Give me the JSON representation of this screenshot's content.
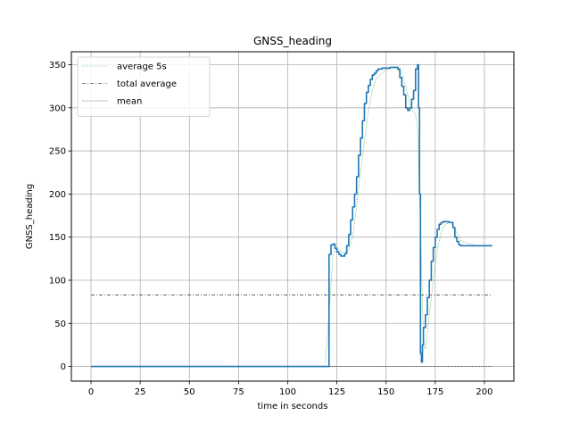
{
  "chart_data": {
    "type": "line",
    "title": "GNSS_heading",
    "xlabel": "time in seconds",
    "ylabel": "GNSS_heading",
    "xlim": [
      -10,
      215
    ],
    "ylim": [
      -17,
      365
    ],
    "xticks": [
      0,
      25,
      50,
      75,
      100,
      125,
      150,
      175,
      200
    ],
    "yticks": [
      0,
      50,
      100,
      150,
      200,
      250,
      300,
      350
    ],
    "grid": true,
    "legend_position": "top-left",
    "series": [
      {
        "name": "",
        "color": "#1f77b4",
        "style": "solid-step",
        "x": [
          0,
          10,
          20,
          30,
          40,
          50,
          60,
          70,
          80,
          90,
          100,
          110,
          120,
          121,
          122,
          123,
          124,
          125,
          126,
          127,
          128,
          129,
          130,
          131,
          132,
          133,
          134,
          135,
          136,
          137,
          138,
          139,
          140,
          141,
          142,
          143,
          144,
          145,
          146,
          148,
          150,
          152,
          154,
          156,
          157,
          158,
          159,
          160,
          161,
          162,
          163,
          164,
          165,
          166,
          166.5,
          167,
          167.5,
          168,
          168.5,
          169,
          170,
          171,
          172,
          173,
          174,
          175,
          176,
          177,
          178,
          179,
          180,
          182,
          184,
          185,
          186,
          187,
          188,
          190,
          195,
          200,
          204
        ],
        "y": [
          0,
          0,
          0,
          0,
          0,
          0,
          0,
          0,
          0,
          0,
          0,
          0,
          0,
          130,
          141,
          142,
          137,
          133,
          130,
          128,
          128,
          131,
          140,
          153,
          170,
          185,
          200,
          220,
          245,
          265,
          285,
          305,
          318,
          326,
          333,
          338,
          340,
          343,
          345,
          346,
          346,
          347,
          347,
          345,
          335,
          325,
          315,
          300,
          297,
          300,
          310,
          320,
          345,
          350,
          300,
          200,
          15,
          5,
          25,
          45,
          60,
          80,
          100,
          122,
          138,
          150,
          159,
          165,
          167,
          168,
          168,
          167,
          161,
          150,
          145,
          141,
          140,
          140,
          140,
          140,
          140
        ]
      },
      {
        "name": "average 5s",
        "color": "#2ca02c",
        "style": "dotted",
        "x": [
          0,
          20,
          40,
          60,
          80,
          100,
          119,
          121,
          123,
          125,
          127,
          129,
          131,
          133,
          135,
          137,
          139,
          141,
          143,
          145,
          150,
          155,
          158,
          160,
          162,
          164,
          165,
          166,
          167,
          168,
          169,
          170,
          172,
          174,
          176,
          178,
          180,
          182,
          184,
          186,
          188,
          195,
          204
        ],
        "y": [
          0,
          0,
          0,
          0,
          0,
          0,
          0,
          60,
          130,
          138,
          134,
          130,
          135,
          150,
          185,
          225,
          262,
          296,
          320,
          334,
          344,
          346,
          340,
          325,
          305,
          295,
          292,
          275,
          200,
          120,
          30,
          20,
          60,
          100,
          135,
          155,
          164,
          167,
          164,
          155,
          146,
          140,
          140
        ]
      },
      {
        "name": "total average",
        "color": "#000000",
        "style": "dashdot",
        "x": [
          0,
          204
        ],
        "y": [
          83,
          83
        ]
      },
      {
        "name": "mean",
        "color": "#000000",
        "style": "dotted",
        "x": [
          0,
          204
        ],
        "y": [
          0,
          0
        ]
      }
    ]
  }
}
